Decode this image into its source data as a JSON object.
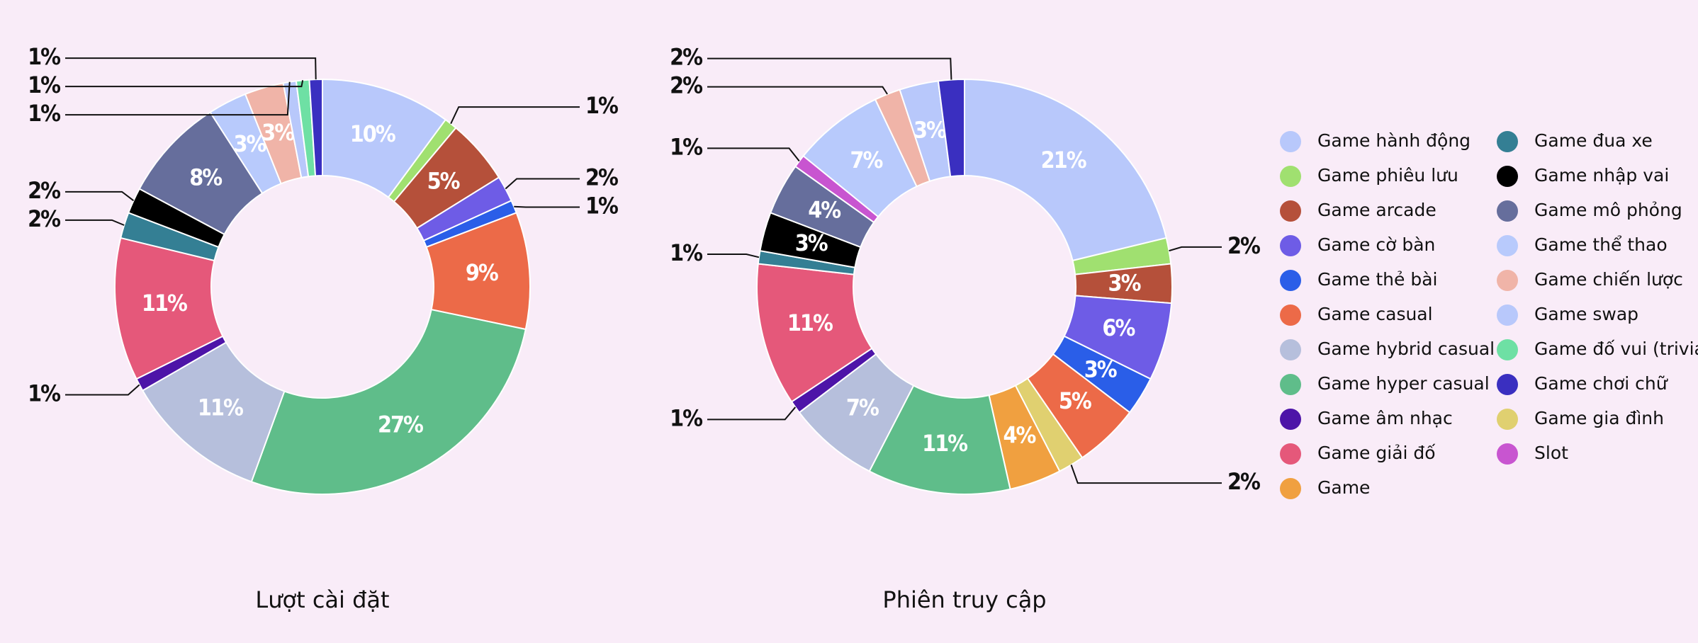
{
  "chart_data": [
    {
      "type": "pie",
      "title": "Lượt cài đặt",
      "categories": [
        "Game hành động",
        "Game phiêu lưu",
        "Game arcade",
        "Game cờ bàn",
        "Game thẻ bài",
        "Game casual",
        "Game hyper casual",
        "Game hybrid casual",
        "Game âm nhạc",
        "Game giải đố",
        "Game đua xe",
        "Game nhập vai",
        "Game mô phỏng",
        "Game thể thao",
        "Game chiến lược",
        "Game swap",
        "Game đố vui (trivia)",
        "Game chơi chữ"
      ],
      "values": [
        10,
        1,
        5,
        2,
        1,
        9,
        27,
        11,
        1,
        11,
        2,
        2,
        8,
        3,
        3,
        1,
        1,
        1
      ],
      "value_labels": [
        "10%",
        "1%",
        "5%",
        "2%",
        "1%",
        "9%",
        "27%",
        "11%",
        "1%",
        "11%",
        "2%",
        "2%",
        "8%",
        "3%",
        "3%",
        "1%",
        "1%",
        "1%"
      ],
      "colors": [
        "#b8c8fb",
        "#a0e070",
        "#b5503a",
        "#6e5ce6",
        "#2a5ee8",
        "#ec6a48",
        "#5fbd8a",
        "#b6bfdc",
        "#4d14a8",
        "#e5587a",
        "#347f94",
        "#000000",
        "#666e9c",
        "#b8cafc",
        "#f0b4a8",
        "#b8c8fb",
        "#6ee0a4",
        "#3a2fc0"
      ]
    },
    {
      "type": "pie",
      "title": "Phiên truy cập",
      "categories": [
        "Game hành động",
        "Game phiêu lưu",
        "Game arcade",
        "Game cờ bàn",
        "Game thẻ bài",
        "Game casual",
        "Game gia đình",
        "Game",
        "Game hyper casual",
        "Game hybrid casual",
        "Game âm nhạc",
        "Game giải đố",
        "Game đua xe",
        "Game nhập vai",
        "Game mô phỏng",
        "Slot",
        "Game thể thao",
        "Game chiến lược",
        "Game swap",
        "Game chơi chữ"
      ],
      "values": [
        21,
        2,
        3,
        6,
        3,
        5,
        2,
        4,
        11,
        7,
        1,
        11,
        1,
        3,
        4,
        1,
        7,
        2,
        3,
        2
      ],
      "value_labels": [
        "21%",
        "2%",
        "3%",
        "6%",
        "3%",
        "5%",
        "2%",
        "4%",
        "11%",
        "7%",
        "1%",
        "11%",
        "1%",
        "3%",
        "4%",
        "1%",
        "7%",
        "2%",
        "3%",
        "2%"
      ],
      "colors": [
        "#b8c8fb",
        "#a0e070",
        "#b5503a",
        "#6e5ce6",
        "#2a5ee8",
        "#ec6a48",
        "#e0d070",
        "#f0a040",
        "#5fbd8a",
        "#b6bfdc",
        "#4d14a8",
        "#e5587a",
        "#347f94",
        "#000000",
        "#666e9c",
        "#c855d0",
        "#b8cafc",
        "#f0b4a8",
        "#b8c8fb",
        "#3a2fc0"
      ]
    }
  ],
  "legend": [
    {
      "name": "Game hành động",
      "color": "#b8c8fb"
    },
    {
      "name": "Game phiêu lưu",
      "color": "#a0e070"
    },
    {
      "name": "Game arcade",
      "color": "#b5503a"
    },
    {
      "name": "Game cờ bàn",
      "color": "#6e5ce6"
    },
    {
      "name": "Game thẻ bài",
      "color": "#2a5ee8"
    },
    {
      "name": "Game casual",
      "color": "#ec6a48"
    },
    {
      "name": "Game hybrid casual",
      "color": "#b6bfdc"
    },
    {
      "name": "Game hyper casual",
      "color": "#5fbd8a"
    },
    {
      "name": "Game âm nhạc",
      "color": "#4d14a8"
    },
    {
      "name": "Game giải đố",
      "color": "#e5587a"
    },
    {
      "name": "Game",
      "color": "#f0a040"
    },
    {
      "name": "Game đua xe",
      "color": "#347f94"
    },
    {
      "name": "Game nhập vai",
      "color": "#000000"
    },
    {
      "name": "Game mô phỏng",
      "color": "#666e9c"
    },
    {
      "name": "Game thể thao",
      "color": "#b8cafc"
    },
    {
      "name": "Game chiến lược",
      "color": "#f0b4a8"
    },
    {
      "name": "Game swap",
      "color": "#b8c8fb"
    },
    {
      "name": "Game đố vui (trivia)",
      "color": "#6ee0a4"
    },
    {
      "name": "Game chơi chữ",
      "color": "#3a2fc0"
    },
    {
      "name": "Game gia đình",
      "color": "#e0d070"
    },
    {
      "name": "Slot",
      "color": "#c855d0"
    }
  ]
}
